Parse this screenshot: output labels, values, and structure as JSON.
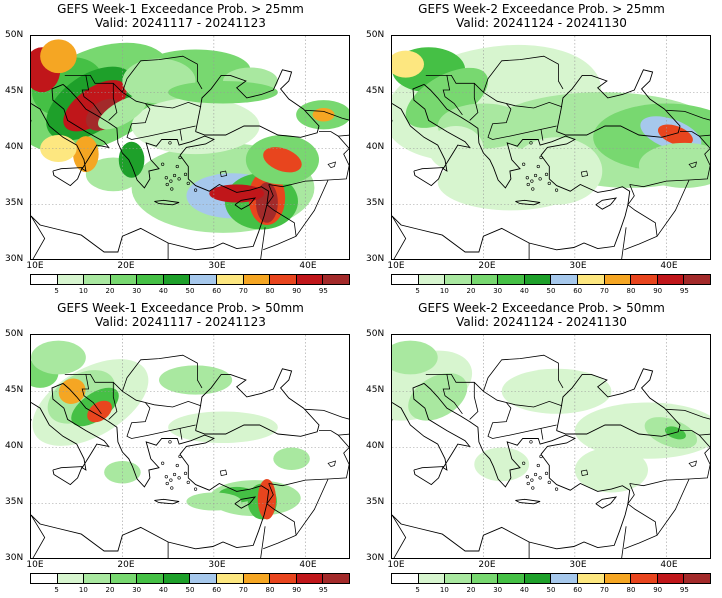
{
  "panels": [
    {
      "title": "GEFS Week-1 Exceedance Prob. > 25mm",
      "valid": "Valid: 20241117 - 20241123"
    },
    {
      "title": "GEFS Week-2 Exceedance Prob. > 25mm",
      "valid": "Valid: 20241124 - 20241130"
    },
    {
      "title": "GEFS Week-1 Exceedance Prob. > 50mm",
      "valid": "Valid: 20241117 - 20241123"
    },
    {
      "title": "GEFS Week-2 Exceedance Prob. > 50mm",
      "valid": "Valid: 20241124 - 20241130"
    }
  ],
  "lat_labels": [
    "50N",
    "45N",
    "40N",
    "35N",
    "30N"
  ],
  "lon_labels": [
    "10E",
    "20E",
    "30E",
    "40E"
  ],
  "colorbar": {
    "labels": [
      "5",
      "10",
      "20",
      "30",
      "40",
      "50",
      "60",
      "70",
      "80",
      "90",
      "95"
    ],
    "colors": [
      "#ffffff",
      "#d7f5cf",
      "#a9e8a0",
      "#78d870",
      "#45c045",
      "#1ea02a",
      "#a6c8ec",
      "#fde780",
      "#f5a623",
      "#e8451e",
      "#c0161a",
      "#a32a2a"
    ]
  }
}
